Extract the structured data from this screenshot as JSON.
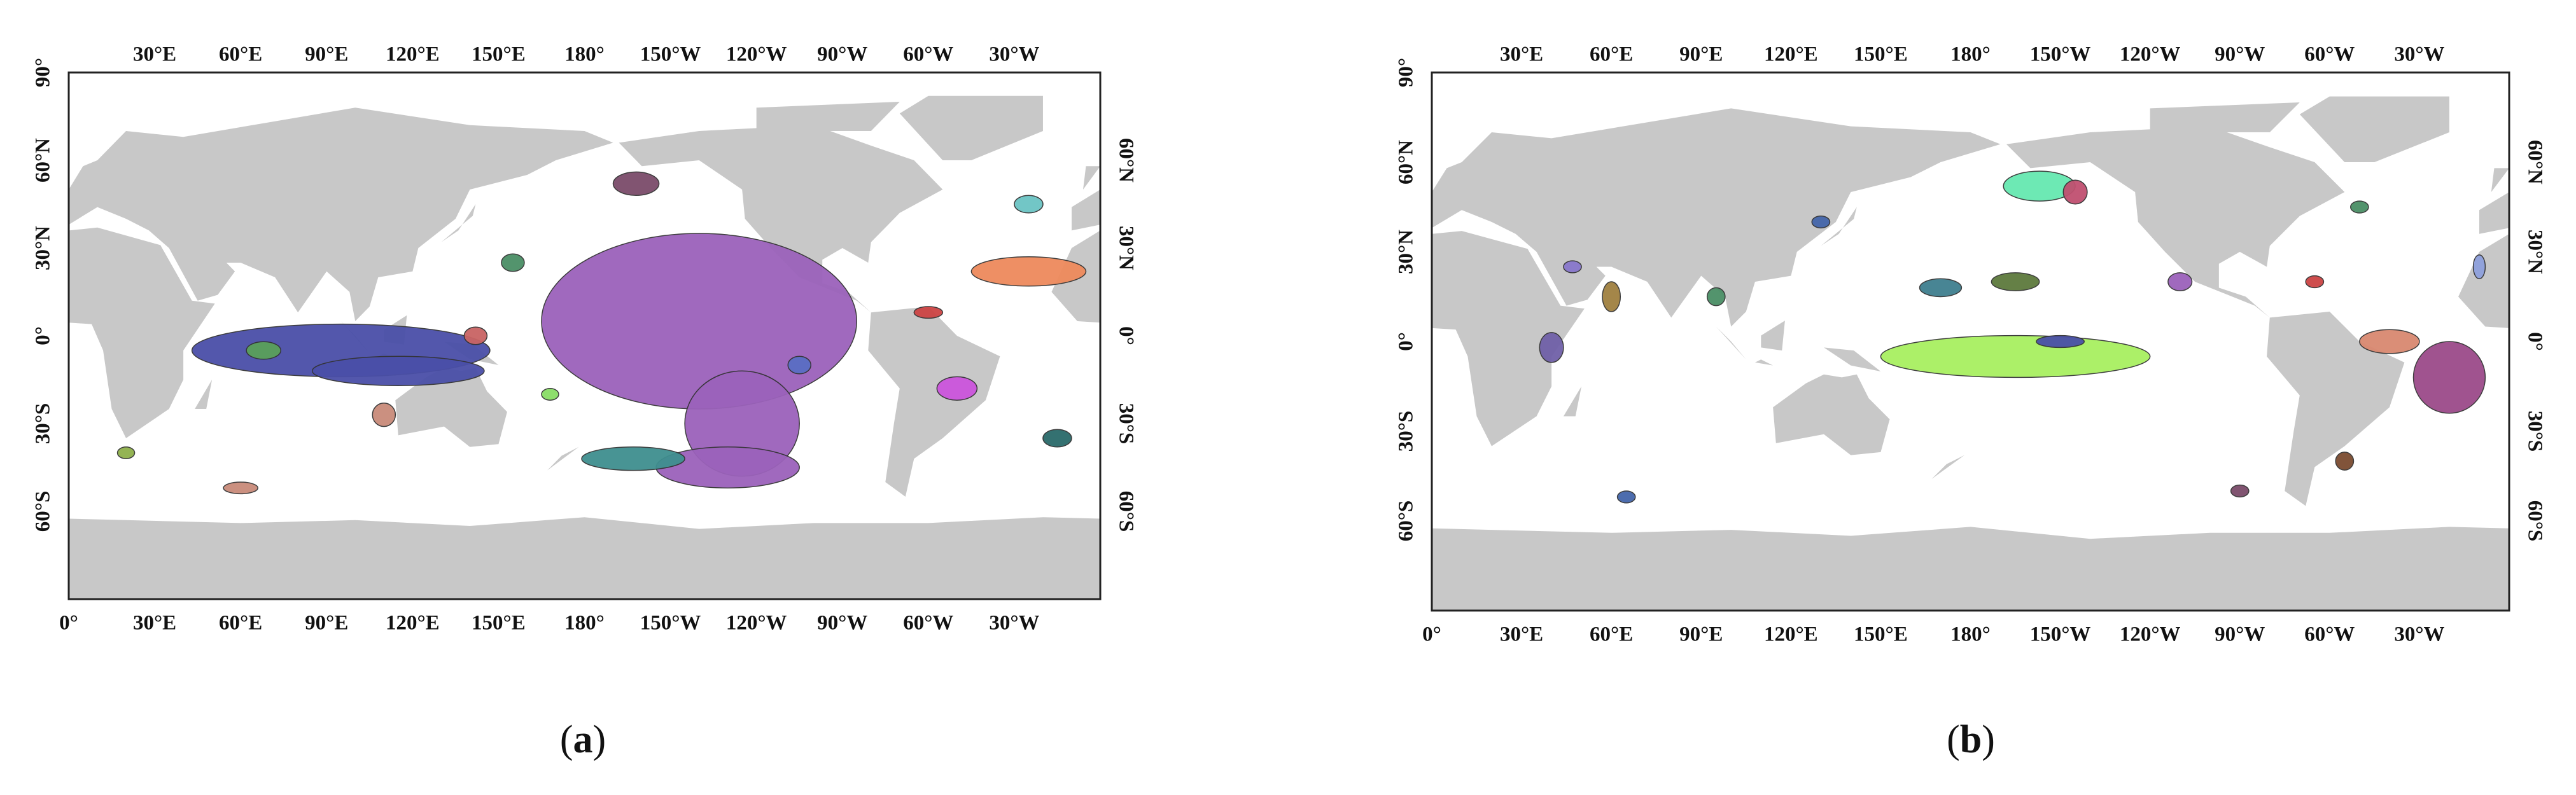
{
  "panels": [
    {
      "caption": {
        "open": "(",
        "letter": "a",
        "close": ")"
      },
      "top_labels": [
        "30°E",
        "60°E",
        "90°E",
        "120°E",
        "150°E",
        "180°",
        "150°W",
        "120°W",
        "90°W",
        "60°W",
        "30°W"
      ],
      "bottom_labels": [
        "0°",
        "30°E",
        "60°E",
        "90°E",
        "120°E",
        "150°E",
        "180°",
        "150°W",
        "120°W",
        "90°W",
        "60°W",
        "30°W"
      ],
      "left_labels": [
        "90°",
        "60°N",
        "30°N",
        "0°",
        "30°S",
        "60°S"
      ],
      "right_labels": [
        "60°N",
        "30°N",
        "0°",
        "30°S",
        "60°S"
      ]
    },
    {
      "caption": {
        "open": "(",
        "letter": "b",
        "close": ")"
      },
      "top_labels": [
        "30°E",
        "60°E",
        "90°E",
        "120°E",
        "150°E",
        "180°",
        "150°W",
        "120°W",
        "90°W",
        "60°W",
        "30°W"
      ],
      "bottom_labels": [
        "0°",
        "30°E",
        "60°E",
        "90°E",
        "120°E",
        "150°E",
        "180°",
        "150°W",
        "120°W",
        "90°W",
        "60°W",
        "30°W"
      ],
      "left_labels": [
        "90°",
        "60°N",
        "30°N",
        "0°",
        "30°S",
        "60°S"
      ],
      "right_labels": [
        "60°N",
        "30°N",
        "0°",
        "30°S",
        "60°S"
      ]
    }
  ]
}
